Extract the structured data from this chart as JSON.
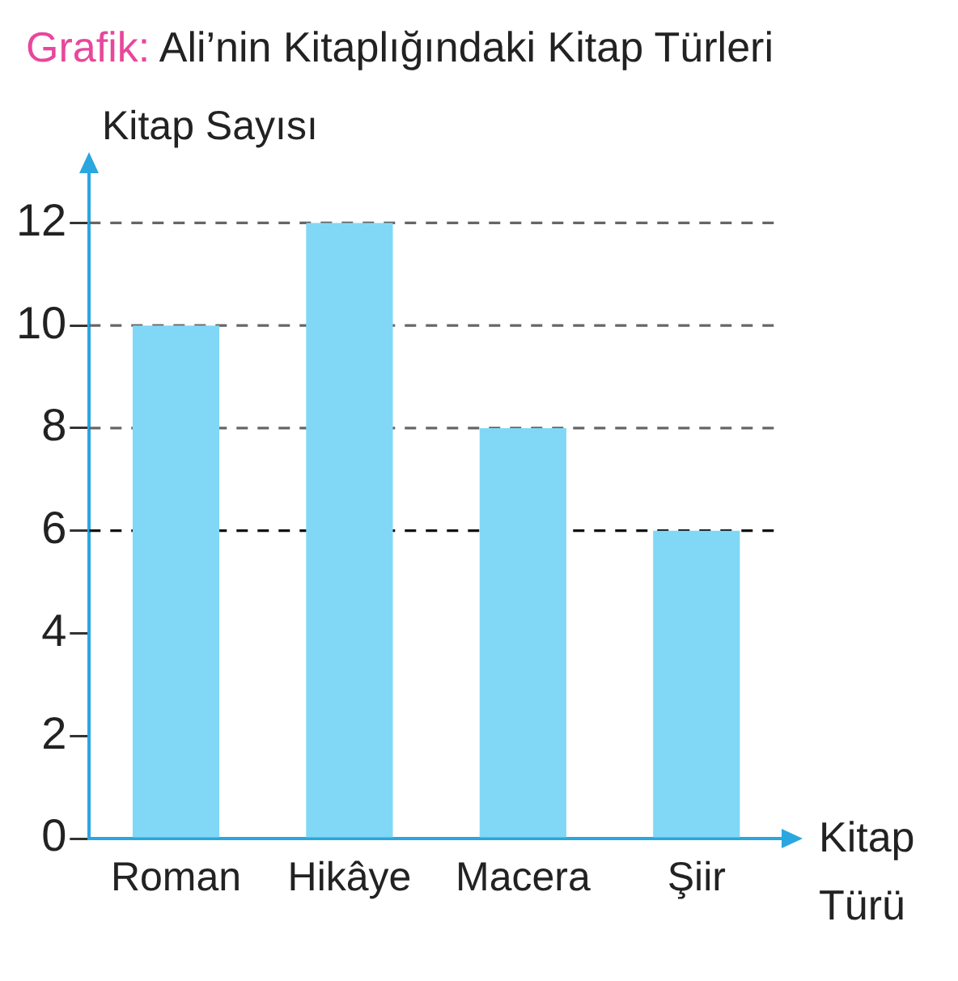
{
  "chart_data": {
    "type": "bar",
    "title": "Grafik: Ali’nin Kitaplığındaki Kitap Türleri",
    "xlabel": "Kitap Türü",
    "ylabel": "Kitap Sayısı",
    "categories": [
      "Roman",
      "Hikâye",
      "Macera",
      "Şiir"
    ],
    "values": [
      10,
      12,
      8,
      6
    ],
    "color": "#80d8f6",
    "ylim": [
      0,
      13
    ],
    "yticks": [
      0,
      2,
      4,
      6,
      8,
      10,
      12
    ],
    "ref_lines": [
      {
        "axis": "y",
        "value": 12,
        "color": "#666666",
        "line_style": "dashed"
      },
      {
        "axis": "y",
        "value": 10,
        "color": "#666666",
        "line_style": "dashed"
      },
      {
        "axis": "y",
        "value": 8,
        "color": "#666666",
        "line_style": "dashed"
      },
      {
        "axis": "y",
        "value": 6,
        "color": "#111111",
        "line_style": "dashed"
      }
    ]
  }
}
